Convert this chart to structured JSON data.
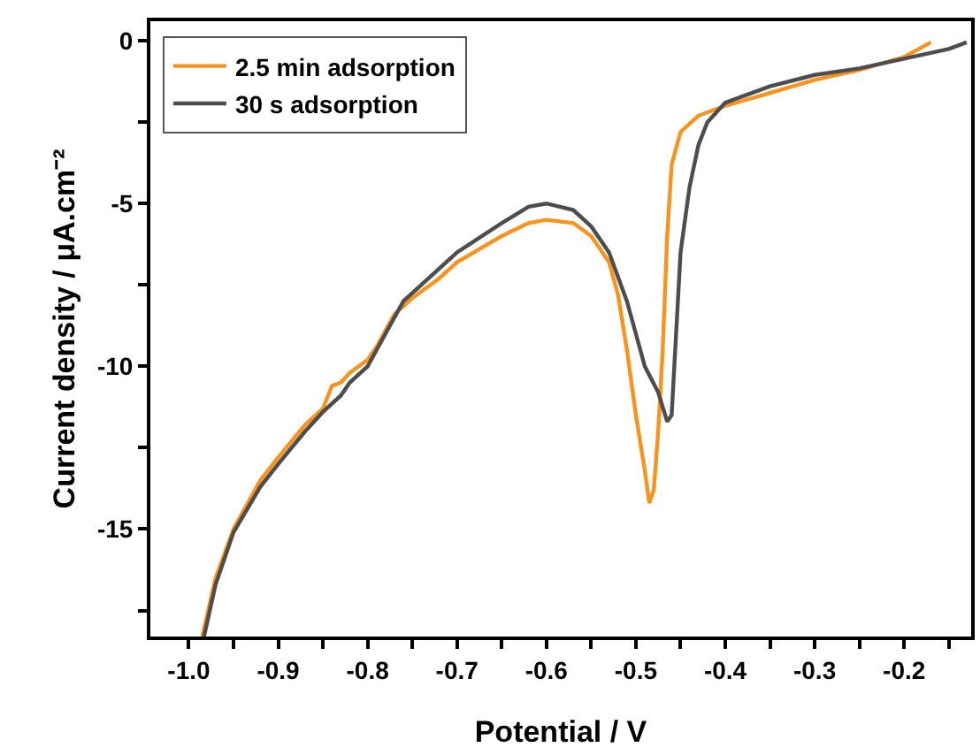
{
  "chart_data": {
    "type": "line",
    "xlabel": "Potential / V",
    "ylabel": "Current density / μA.cm⁻²",
    "xlim": [
      -1.043,
      -0.125
    ],
    "ylim": [
      -18.3,
      0.6
    ],
    "xticks": [
      {
        "value": -1.0,
        "label": "-1.0"
      },
      {
        "value": -0.95,
        "label": null
      },
      -0.9,
      {
        "value": -0.85,
        "label": null
      },
      -0.8,
      {
        "value": -0.75,
        "label": null
      },
      -0.7,
      {
        "value": -0.65,
        "label": null
      },
      -0.6,
      {
        "value": -0.55,
        "label": null
      },
      -0.5,
      {
        "value": -0.45,
        "label": null
      },
      -0.4,
      {
        "value": -0.35,
        "label": null
      },
      -0.3,
      {
        "value": -0.25,
        "label": null
      },
      -0.2,
      {
        "value": -0.15,
        "label": null
      }
    ],
    "yticks": [
      0,
      {
        "value": -2.5,
        "label": null
      },
      -5,
      {
        "value": -7.5,
        "label": null
      },
      -10,
      {
        "value": -12.5,
        "label": null
      },
      -15,
      {
        "value": -17.5,
        "label": null
      }
    ],
    "legend": "top left",
    "line_style": "solid",
    "marker": "none",
    "series": [
      {
        "name": "2.5 min adsorption",
        "color": "#f7931e",
        "x": [
          -0.985,
          -0.97,
          -0.95,
          -0.92,
          -0.9,
          -0.87,
          -0.85,
          -0.84,
          -0.83,
          -0.82,
          -0.8,
          -0.79,
          -0.77,
          -0.75,
          -0.72,
          -0.7,
          -0.65,
          -0.62,
          -0.6,
          -0.57,
          -0.55,
          -0.53,
          -0.52,
          -0.51,
          -0.5,
          -0.49,
          -0.485,
          -0.48,
          -0.475,
          -0.47,
          -0.465,
          -0.46,
          -0.45,
          -0.43,
          -0.4,
          -0.35,
          -0.3,
          -0.25,
          -0.2,
          -0.17
        ],
        "values": [
          -18.3,
          -16.5,
          -15,
          -13.5,
          -12.8,
          -11.8,
          -11.3,
          -10.6,
          -10.5,
          -10.2,
          -9.8,
          -9.4,
          -8.4,
          -7.9,
          -7.3,
          -6.8,
          -6.0,
          -5.6,
          -5.5,
          -5.6,
          -6.0,
          -6.8,
          -7.8,
          -9.5,
          -11.5,
          -13.2,
          -14.2,
          -13.8,
          -12,
          -9.5,
          -6,
          -3.8,
          -2.8,
          -2.3,
          -2.0,
          -1.6,
          -1.2,
          -0.9,
          -0.5,
          -0.05
        ]
      },
      {
        "name": "30 s adsorption",
        "color": "#4d4d4d",
        "x": [
          -0.983,
          -0.97,
          -0.95,
          -0.92,
          -0.9,
          -0.87,
          -0.85,
          -0.83,
          -0.82,
          -0.8,
          -0.78,
          -0.76,
          -0.72,
          -0.7,
          -0.65,
          -0.62,
          -0.6,
          -0.57,
          -0.55,
          -0.53,
          -0.51,
          -0.5,
          -0.49,
          -0.475,
          -0.465,
          -0.46,
          -0.455,
          -0.45,
          -0.44,
          -0.43,
          -0.42,
          -0.4,
          -0.35,
          -0.3,
          -0.25,
          -0.2,
          -0.15,
          -0.13
        ],
        "values": [
          -18.3,
          -16.7,
          -15.1,
          -13.7,
          -13.0,
          -12.0,
          -11.4,
          -10.9,
          -10.5,
          -10.0,
          -9.0,
          -8.0,
          -7.0,
          -6.5,
          -5.6,
          -5.1,
          -5.0,
          -5.2,
          -5.7,
          -6.5,
          -8.0,
          -9.0,
          -10,
          -10.8,
          -11.7,
          -11.5,
          -9,
          -6.5,
          -4.5,
          -3.2,
          -2.5,
          -1.9,
          -1.4,
          -1.05,
          -0.85,
          -0.55,
          -0.25,
          -0.05
        ]
      }
    ]
  }
}
